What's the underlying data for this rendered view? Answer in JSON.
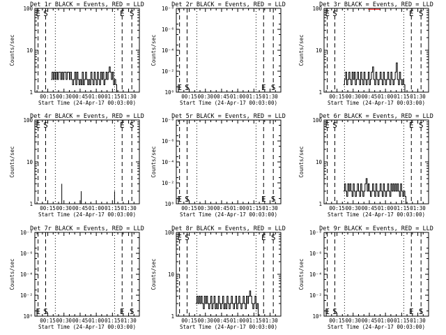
{
  "chart_data": [
    {
      "type": "line",
      "title": "Det 1r BLACK = Events, RED = LLD",
      "xlabel": "Start Time (24-Apr-17 00:03:00)",
      "ylabel": "Counts/sec",
      "yscale": "log",
      "ylim": [
        1,
        100
      ],
      "yticks": [
        "1",
        "10",
        "100"
      ],
      "xticks": [
        "00:15",
        "00:30",
        "00:45",
        "01:00",
        "01:15",
        "01:30"
      ],
      "xlim_minutes": [
        3,
        100
      ],
      "markers": [
        {
          "label": "E",
          "x": 6
        },
        {
          "label": "S",
          "x": 13
        },
        {
          "label": "E",
          "x": 84
        },
        {
          "label": "S",
          "x": 93
        }
      ],
      "dashed_lines_x": [
        6,
        13,
        84,
        93
      ],
      "dotted_lines_x": [
        22,
        77
      ],
      "series": [
        {
          "name": "Events",
          "color": "#000000",
          "x": [
            18,
            19,
            20,
            21,
            22,
            23,
            24,
            25,
            26,
            27,
            28,
            29,
            30,
            31,
            32,
            33,
            34,
            35,
            36,
            37,
            38,
            39,
            40,
            41,
            42,
            43,
            44,
            45,
            46,
            47,
            48,
            49,
            50,
            51,
            52,
            53,
            54,
            55,
            56,
            57,
            58,
            59,
            60,
            61,
            62,
            63,
            64,
            65,
            66,
            67,
            68,
            69,
            70,
            71,
            72,
            73,
            74,
            75,
            76,
            77,
            78,
            79
          ],
          "values": [
            2,
            3,
            2,
            3,
            2,
            3,
            2,
            3,
            3,
            2,
            3,
            2,
            3,
            3,
            2,
            3,
            3,
            2,
            3,
            2,
            1.5,
            2,
            3,
            1.5,
            3,
            2,
            1.5,
            2,
            1.5,
            3,
            1.5,
            2,
            3,
            2,
            1.5,
            2,
            1.5,
            3,
            2,
            1.5,
            3,
            2,
            1.5,
            3,
            2,
            1.5,
            3,
            2,
            3,
            1.5,
            2,
            3,
            2,
            3,
            4,
            3,
            2,
            3,
            1.5,
            2,
            1.5,
            1
          ]
        }
      ]
    },
    {
      "type": "line",
      "title": "Det 2r BLACK = Events, RED = LLD",
      "xlabel": "Start Time (24-Apr-17 00:03:00)",
      "ylabel": "Counts/sec",
      "yscale": "log",
      "ylim": [
        1,
        1e-08
      ],
      "yticks": [
        "10⁰",
        "10⁻²",
        "10⁻⁴",
        "10⁻⁶",
        "10⁻⁸"
      ],
      "xticks": [
        "00:15",
        "00:30",
        "00:45",
        "01:00",
        "01:15",
        "01:30"
      ],
      "xlim_minutes": [
        3,
        100
      ],
      "markers": [
        {
          "label": "E",
          "x": 6
        },
        {
          "label": "S",
          "x": 13
        },
        {
          "label": "E",
          "x": 84
        },
        {
          "label": "S",
          "x": 93
        }
      ],
      "dashed_lines_x": [
        6,
        13,
        84,
        93
      ],
      "dotted_lines_x": [
        22,
        77
      ],
      "series": []
    },
    {
      "type": "line",
      "title": "Det 3r BLACK = Events, RED = LLD",
      "xlabel": "Start Time (24-Apr-17 00:03:00)",
      "ylabel": "Counts/sec",
      "yscale": "log",
      "ylim": [
        1,
        100
      ],
      "yticks": [
        "1",
        "10",
        "100"
      ],
      "xticks": [
        "00:15",
        "00:30",
        "00:45",
        "01:00",
        "01:15",
        "01:30"
      ],
      "xlim_minutes": [
        3,
        100
      ],
      "markers": [
        {
          "label": "E",
          "x": 6
        },
        {
          "label": "S",
          "x": 13
        },
        {
          "label": "E",
          "x": 84
        },
        {
          "label": "S",
          "x": 93
        }
      ],
      "dashed_lines_x": [
        6,
        13,
        84,
        93
      ],
      "dotted_lines_x": [
        22,
        77
      ],
      "series": [
        {
          "name": "Events",
          "color": "#000000",
          "x": [
            21,
            22,
            23,
            24,
            25,
            26,
            27,
            28,
            29,
            30,
            31,
            32,
            33,
            34,
            35,
            36,
            37,
            38,
            39,
            40,
            41,
            42,
            43,
            44,
            45,
            46,
            47,
            48,
            49,
            50,
            51,
            52,
            53,
            54,
            55,
            56,
            57,
            58,
            59,
            60,
            61,
            62,
            63,
            64,
            65,
            66,
            67,
            68,
            69,
            70,
            71,
            72,
            73,
            74,
            75,
            76,
            77,
            78,
            79
          ],
          "values": [
            1.5,
            2,
            3,
            1.5,
            2,
            3,
            2,
            1.5,
            3,
            2,
            3,
            1.5,
            2,
            3,
            2,
            1.5,
            3,
            2,
            1.5,
            3,
            2,
            1.5,
            2,
            3,
            1.5,
            2,
            3,
            4,
            2,
            1.5,
            3,
            2,
            1.5,
            2,
            3,
            2,
            1.5,
            3,
            2,
            1.5,
            2,
            3,
            2,
            1.5,
            3,
            2,
            1.5,
            2,
            3,
            5,
            2,
            1.5,
            3,
            2,
            1.5,
            2,
            1.5,
            1,
            1
          ]
        },
        {
          "name": "LLD",
          "color": "#ff0000",
          "x": [
            44,
            45,
            46,
            47,
            48,
            49,
            50,
            51,
            52,
            53,
            54,
            55
          ],
          "values": [
            95,
            95,
            95,
            95,
            95,
            95,
            95,
            95,
            95,
            95,
            95,
            95
          ]
        }
      ]
    },
    {
      "type": "line",
      "title": "Det 4r BLACK = Events, RED = LLD",
      "xlabel": "Start Time (24-Apr-17 00:03:00)",
      "ylabel": "Counts/sec",
      "yscale": "log",
      "ylim": [
        1,
        100
      ],
      "yticks": [
        "1",
        "10",
        "100"
      ],
      "xticks": [
        "00:15",
        "00:30",
        "00:45",
        "01:00",
        "01:15",
        "01:30"
      ],
      "xlim_minutes": [
        3,
        100
      ],
      "markers": [
        {
          "label": "E",
          "x": 6
        },
        {
          "label": "S",
          "x": 13
        },
        {
          "label": "E",
          "x": 84
        },
        {
          "label": "S",
          "x": 93
        }
      ],
      "dashed_lines_x": [
        6,
        13,
        84,
        93
      ],
      "dotted_lines_x": [
        22,
        77
      ],
      "series": [
        {
          "name": "Events",
          "color": "#000000",
          "spikes": true,
          "x": [
            28,
            46,
            77
          ],
          "values": [
            3,
            2,
            2
          ]
        }
      ]
    },
    {
      "type": "line",
      "title": "Det 5r BLACK = Events, RED = LLD",
      "xlabel": "Start Time (24-Apr-17 00:03:00)",
      "ylabel": "Counts/sec",
      "yscale": "log",
      "ylim": [
        1,
        1e-08
      ],
      "yticks": [
        "10⁰",
        "10⁻²",
        "10⁻⁴",
        "10⁻⁶",
        "10⁻⁸"
      ],
      "xticks": [
        "00:15",
        "00:30",
        "00:45",
        "01:00",
        "01:15",
        "01:30"
      ],
      "xlim_minutes": [
        3,
        100
      ],
      "markers": [
        {
          "label": "E",
          "x": 6
        },
        {
          "label": "S",
          "x": 13
        },
        {
          "label": "E",
          "x": 84
        },
        {
          "label": "S",
          "x": 93
        }
      ],
      "dashed_lines_x": [
        6,
        13,
        84,
        93
      ],
      "dotted_lines_x": [
        22,
        77
      ],
      "series": []
    },
    {
      "type": "line",
      "title": "Det 6r BLACK = Events, RED = LLD",
      "xlabel": "Start Time (24-Apr-17 00:03:00)",
      "ylabel": "Counts/sec",
      "yscale": "log",
      "ylim": [
        1,
        100
      ],
      "yticks": [
        "1",
        "10",
        "100"
      ],
      "xticks": [
        "00:15",
        "00:30",
        "00:45",
        "01:00",
        "01:15",
        "01:30"
      ],
      "xlim_minutes": [
        3,
        100
      ],
      "markers": [
        {
          "label": "E",
          "x": 6
        },
        {
          "label": "S",
          "x": 13
        },
        {
          "label": "E",
          "x": 84
        },
        {
          "label": "S",
          "x": 93
        }
      ],
      "dashed_lines_x": [
        6,
        13,
        84,
        93
      ],
      "dotted_lines_x": [
        22,
        77
      ],
      "series": [
        {
          "name": "Events",
          "color": "#000000",
          "x": [
            21,
            22,
            23,
            24,
            25,
            26,
            27,
            28,
            29,
            30,
            31,
            32,
            33,
            34,
            35,
            36,
            37,
            38,
            39,
            40,
            41,
            42,
            43,
            44,
            45,
            46,
            47,
            48,
            49,
            50,
            51,
            52,
            53,
            54,
            55,
            56,
            57,
            58,
            59,
            60,
            61,
            62,
            63,
            64,
            65,
            66,
            67,
            68,
            69,
            70,
            71,
            72,
            73,
            74,
            75,
            76,
            77,
            78,
            79
          ],
          "values": [
            2,
            3,
            2,
            1.5,
            3,
            2,
            3,
            2,
            1.5,
            3,
            2,
            1.5,
            2,
            3,
            2,
            1.5,
            3,
            2,
            1.5,
            2,
            3,
            4,
            2,
            3,
            2,
            1.5,
            2,
            3,
            2,
            1.5,
            3,
            2,
            1.5,
            2,
            3,
            2,
            1.5,
            3,
            2,
            1.5,
            2,
            3,
            2,
            1.5,
            3,
            2,
            3,
            2,
            3,
            2,
            3,
            2,
            1.5,
            3,
            2,
            1.5,
            2,
            1.5,
            1
          ]
        }
      ]
    },
    {
      "type": "line",
      "title": "Det 7r BLACK = Events, RED = LLD",
      "xlabel": "Start Time (24-Apr-17 00:03:00)",
      "ylabel": "Counts/sec",
      "yscale": "log",
      "ylim": [
        1,
        1e-08
      ],
      "yticks": [
        "10⁰",
        "10⁻²",
        "10⁻⁴",
        "10⁻⁶",
        "10⁻⁸"
      ],
      "xticks": [
        "00:15",
        "00:30",
        "00:45",
        "01:00",
        "01:15",
        "01:30"
      ],
      "xlim_minutes": [
        3,
        100
      ],
      "markers": [
        {
          "label": "E",
          "x": 6
        },
        {
          "label": "S",
          "x": 13
        },
        {
          "label": "E",
          "x": 84
        },
        {
          "label": "S",
          "x": 93
        }
      ],
      "dashed_lines_x": [
        6,
        13,
        84,
        93
      ],
      "dotted_lines_x": [
        22,
        77
      ],
      "series": []
    },
    {
      "type": "line",
      "title": "Det 8r BLACK = Events, RED = LLD",
      "xlabel": "Start Time (24-Apr-17 00:03:00)",
      "ylabel": "Counts/sec",
      "yscale": "log",
      "ylim": [
        1,
        100
      ],
      "yticks": [
        "1",
        "10",
        "100"
      ],
      "xticks": [
        "00:15",
        "00:30",
        "00:45",
        "01:00",
        "01:15",
        "01:30"
      ],
      "xlim_minutes": [
        3,
        100
      ],
      "markers": [
        {
          "label": "E",
          "x": 6
        },
        {
          "label": "S",
          "x": 13
        },
        {
          "label": "E",
          "x": 84
        },
        {
          "label": "S",
          "x": 93
        }
      ],
      "dashed_lines_x": [
        6,
        13,
        84,
        93
      ],
      "dotted_lines_x": [
        22,
        77
      ],
      "series": [
        {
          "name": "Events",
          "color": "#000000",
          "x": [
            21,
            22,
            23,
            24,
            25,
            26,
            27,
            28,
            29,
            30,
            31,
            32,
            33,
            34,
            35,
            36,
            37,
            38,
            39,
            40,
            41,
            42,
            43,
            44,
            45,
            46,
            47,
            48,
            49,
            50,
            51,
            52,
            53,
            54,
            55,
            56,
            57,
            58,
            59,
            60,
            61,
            62,
            63,
            64,
            65,
            66,
            67,
            68,
            69,
            70,
            71,
            72,
            73,
            74,
            75,
            76,
            77,
            78,
            79
          ],
          "values": [
            2,
            3,
            2,
            3,
            2,
            3,
            2,
            1.5,
            3,
            2,
            3,
            2,
            1.5,
            2,
            3,
            1.5,
            2,
            3,
            1.5,
            2,
            1.5,
            3,
            2,
            1.5,
            2,
            3,
            1.5,
            2,
            1.5,
            3,
            2,
            1.5,
            2,
            3,
            2,
            1.5,
            2,
            3,
            1.5,
            2,
            3,
            2,
            1.5,
            2,
            3,
            2,
            1.5,
            3,
            2,
            3,
            4,
            3,
            2,
            1.5,
            2,
            3,
            1.5,
            2,
            1
          ]
        }
      ]
    },
    {
      "type": "line",
      "title": "Det 9r BLACK = Events, RED = LLD",
      "xlabel": "Start Time (24-Apr-17 00:03:00)",
      "ylabel": "Counts/sec",
      "yscale": "log",
      "ylim": [
        1,
        1e-08
      ],
      "yticks": [
        "10⁰",
        "10⁻²",
        "10⁻⁴",
        "10⁻⁶",
        "10⁻⁸"
      ],
      "xticks": [
        "00:15",
        "00:30",
        "00:45",
        "01:00",
        "01:15",
        "01:30"
      ],
      "xlim_minutes": [
        3,
        100
      ],
      "markers": [
        {
          "label": "E",
          "x": 6
        },
        {
          "label": "S",
          "x": 13
        },
        {
          "label": "E",
          "x": 84
        },
        {
          "label": "S",
          "x": 93
        }
      ],
      "dashed_lines_x": [
        6,
        13,
        84,
        93
      ],
      "dotted_lines_x": [
        22,
        77
      ],
      "series": []
    }
  ]
}
